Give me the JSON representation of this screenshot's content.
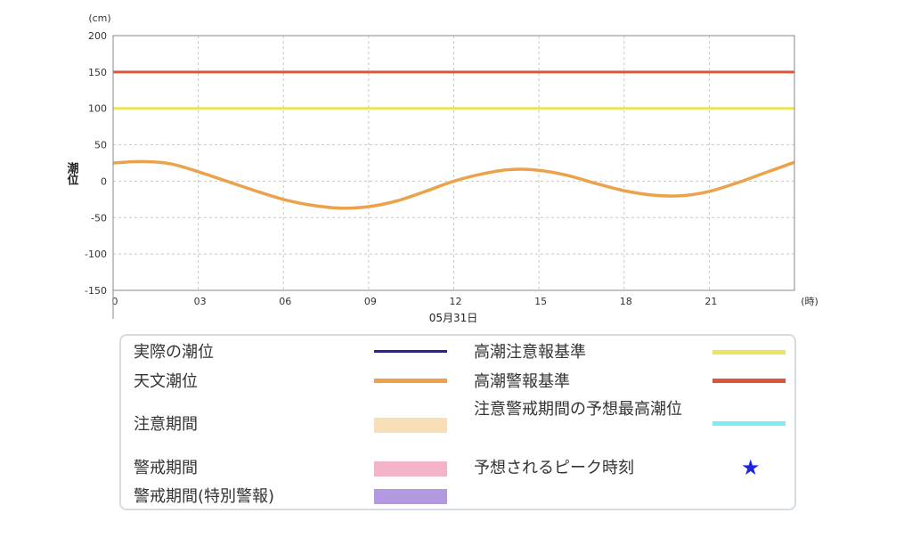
{
  "chart_data": {
    "type": "line",
    "y_unit": "(cm)",
    "ylabel": "潮位",
    "x_unit": "(時)",
    "date_label": "05月31日",
    "ylim": [
      -150,
      200
    ],
    "yticks": [
      "200",
      "150",
      "100",
      "50",
      "0",
      "-50",
      "-100",
      "-150"
    ],
    "xlim": [
      0,
      24
    ],
    "xticks": [
      "0",
      "03",
      "06",
      "09",
      "12",
      "15",
      "18",
      "21"
    ],
    "grid": true,
    "thresholds": [
      {
        "name": "高潮警報基準",
        "value": 150,
        "color": "#e0533a"
      },
      {
        "name": "高潮注意報基準",
        "value": 100,
        "color": "#ece45a"
      }
    ],
    "series": [
      {
        "name": "天文潮位",
        "color": "#eba24a",
        "x": [
          0,
          1,
          2,
          3,
          4,
          5,
          6,
          7,
          8,
          9,
          10,
          11,
          12,
          13,
          14,
          15,
          16,
          17,
          18,
          19,
          20,
          21,
          22,
          23,
          24
        ],
        "y": [
          25,
          27,
          24,
          13,
          0,
          -13,
          -25,
          -33,
          -37,
          -35,
          -27,
          -14,
          0,
          10,
          16,
          15,
          8,
          -3,
          -13,
          -19,
          -20,
          -14,
          -2,
          12,
          26
        ]
      }
    ]
  },
  "legend": {
    "actual": "実際の潮位",
    "astronomical": "天文潮位",
    "caution_period": "注意期間",
    "warning_period": "警戒期間",
    "special_warning_period": "警戒期間(特別警報)",
    "advisory_standard": "高潮注意報基準",
    "warning_standard": "高潮警報基準",
    "predicted_max": "注意警戒期間の予想最高潮位",
    "peak_time": "予想されるピーク時刻",
    "colors": {
      "actual": "#28229a",
      "astronomical": "#eba24a",
      "caution_period": "#f8dfb7",
      "warning_period": "#f3b4c8",
      "special_warning_period": "#b39ae0",
      "advisory_standard": "#ece45a",
      "warning_standard": "#e0533a",
      "predicted_max": "#7fecf1",
      "peak_star": "#1f24e0"
    },
    "peak_icon": "star-icon"
  }
}
